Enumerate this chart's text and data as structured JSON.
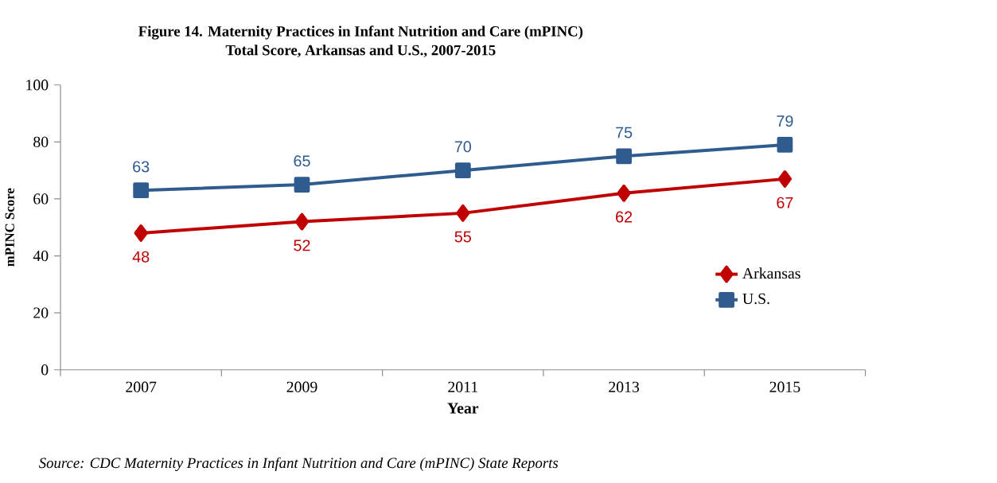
{
  "chart_data": {
    "type": "line",
    "title": "Figure 14. Maternity Practices in Infant Nutrition and Care (mPINC)\nTotal Score, Arkansas and U.S., 2007-2015",
    "xlabel": "Year",
    "ylabel": "mPINC Score",
    "categories": [
      "2007",
      "2009",
      "2011",
      "2013",
      "2015"
    ],
    "series": [
      {
        "name": "Arkansas",
        "color": "#c00000",
        "marker": "diamond",
        "values": [
          48,
          52,
          55,
          62,
          67
        ]
      },
      {
        "name": "U.S.",
        "color": "#2f5b8f",
        "marker": "square",
        "values": [
          63,
          65,
          70,
          75,
          79
        ]
      }
    ],
    "ylim": [
      0,
      100
    ],
    "yticks": [
      0,
      20,
      40,
      60,
      80,
      100
    ],
    "grid": false,
    "legend": "bottom right",
    "data_labels": true,
    "line_style": "solid",
    "annotations": [
      "Source: CDC Maternity Practices in Infant Nutrition and Care (mPINC) State Reports"
    ]
  }
}
